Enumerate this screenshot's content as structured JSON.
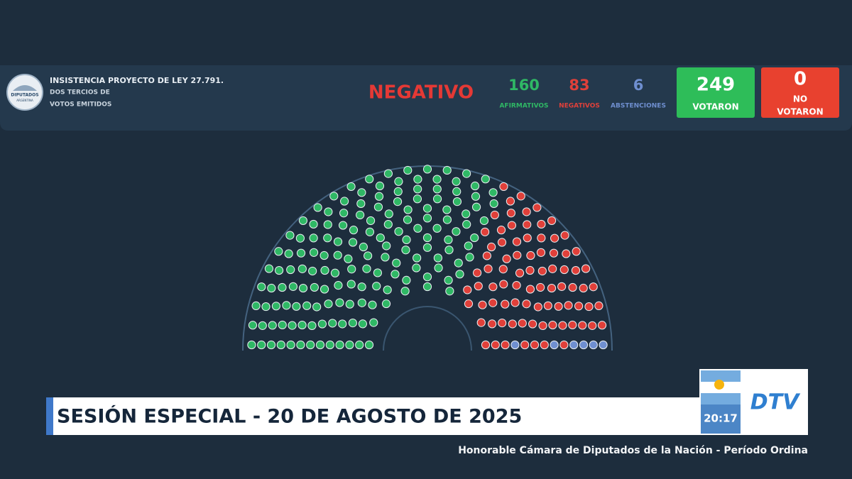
{
  "header": {
    "logo_text": "DIPUTADOS",
    "logo_subtext": "ARGENTINA",
    "title": "INSISTENCIA PROYECTO DE LEY 27.791.",
    "subtitle_lines": [
      "DOS TERCIOS DE",
      "VOTOS EMITIDOS"
    ],
    "result": "NEGATIVO",
    "result_color": "#e53935"
  },
  "tally": [
    {
      "value": 160,
      "label": "AFIRMATIVOS",
      "color": "#2fb865"
    },
    {
      "value": 83,
      "label": "NEGATIVOS",
      "color": "#e0403a"
    },
    {
      "value": 6,
      "label": "ABSTENCIONES",
      "color": "#6f8fd0"
    }
  ],
  "totals": [
    {
      "value": 249,
      "label_lines": [
        "VOTARON"
      ],
      "color": "#2ebd59"
    },
    {
      "value": 0,
      "label_lines": [
        "NO",
        "VOTARON"
      ],
      "color": "#e8412f"
    }
  ],
  "banner": {
    "title": "SESIÓN ESPECIAL - 20 DE AGOSTO DE 2025",
    "time": "20:17",
    "channel": "DTV",
    "ticker": "Honorable Cámara de Diputados de la Nación - Período Ordina"
  }
}
